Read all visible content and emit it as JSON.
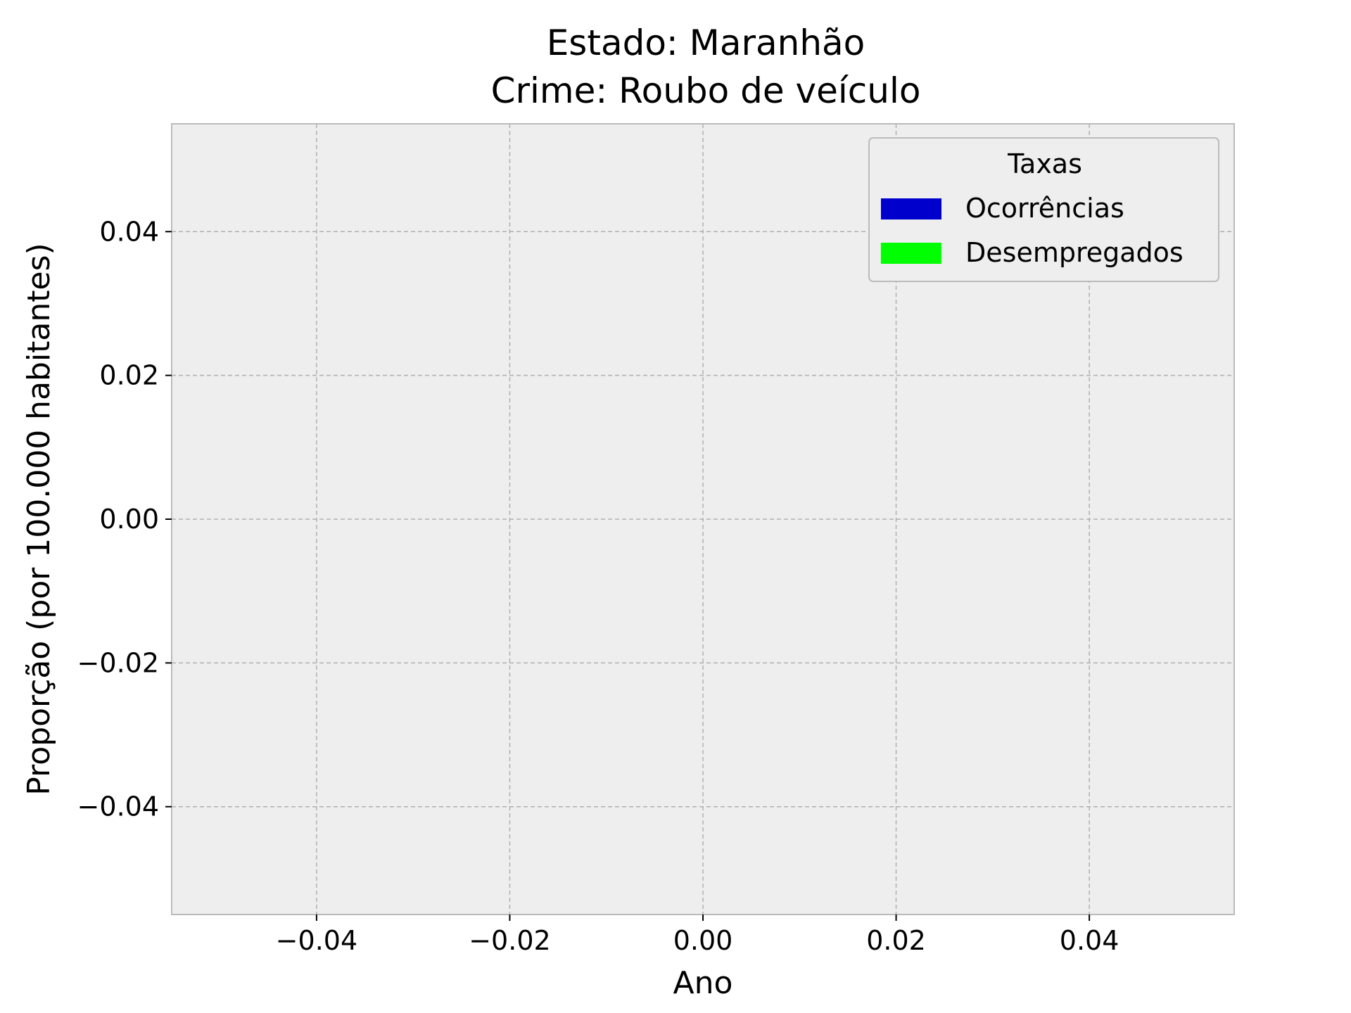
{
  "chart_data": {
    "type": "bar",
    "title": [
      "Estado: Maranhão",
      "Crime: Roubo de veículo"
    ],
    "xlabel": "Ano",
    "ylabel": "Proporção (por 100.000 habitantes)",
    "xlim": [
      -0.055,
      0.055
    ],
    "ylim": [
      -0.055,
      0.055
    ],
    "x_ticks": [
      -0.04,
      -0.02,
      0.0,
      0.02,
      0.04
    ],
    "x_tick_labels": [
      "−0.04",
      "−0.02",
      "0.00",
      "0.02",
      "0.04"
    ],
    "y_ticks": [
      -0.04,
      -0.02,
      0.0,
      0.02,
      0.04
    ],
    "y_tick_labels": [
      "−0.04",
      "−0.02",
      "0.00",
      "0.02",
      "0.04"
    ],
    "grid": true,
    "legend": {
      "title": "Taxas",
      "placement": "top-right",
      "entries": [
        {
          "label": "Ocorrências",
          "color": "#0000cc"
        },
        {
          "label": "Desempregados",
          "color": "#00ff00"
        }
      ]
    },
    "series": [
      {
        "name": "Ocorrências",
        "values": []
      },
      {
        "name": "Desempregados",
        "values": []
      }
    ],
    "categories": []
  },
  "colors": {
    "plot_background": "#eeeeee",
    "frame": "#bbbbbb",
    "grid": "#b0b0b0"
  }
}
